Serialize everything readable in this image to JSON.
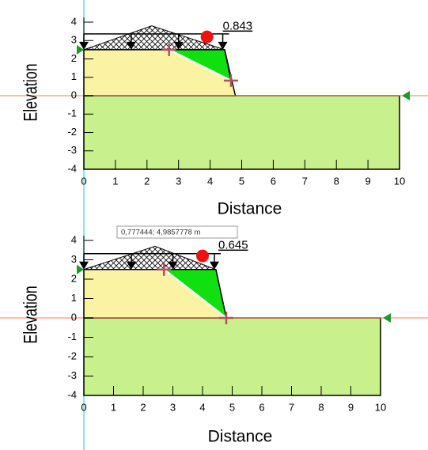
{
  "chart_data": [
    {
      "type": "slope",
      "xlabel": "Distance",
      "ylabel": "Elevation",
      "xlim": [
        0,
        10
      ],
      "ylim": [
        -4,
        4
      ],
      "xticks": [
        0,
        1,
        2,
        3,
        4,
        5,
        6,
        7,
        8,
        9,
        10
      ],
      "yticks": [
        -4,
        -3,
        -2,
        -1,
        0,
        1,
        2,
        3,
        4
      ],
      "ground": {
        "x": [
          0,
          10,
          10,
          0
        ],
        "y": [
          0,
          0,
          -4,
          -4
        ]
      },
      "embankment": {
        "x": [
          0,
          4.46,
          4.8,
          0
        ],
        "y": [
          2.5,
          2.5,
          0,
          0
        ]
      },
      "surcharge": {
        "x": [
          0,
          2.15,
          4.46
        ],
        "y": [
          2.5,
          3.8,
          2.5
        ]
      },
      "sliding_mass": {
        "x": [
          2.7,
          4.46,
          4.66
        ],
        "y": [
          2.5,
          2.5,
          0.82
        ]
      },
      "slip_surface": {
        "x": [
          2.7,
          4.66
        ],
        "y": [
          2.5,
          0.82
        ]
      },
      "loads": [
        0,
        1.5,
        3.0,
        4.4
      ],
      "critical_center": {
        "x": 3.9,
        "y": 3.2
      },
      "fos": 0.843
    },
    {
      "type": "slope",
      "xlabel": "Distance",
      "ylabel": "Elevation",
      "xlim": [
        0,
        10
      ],
      "ylim": [
        -4,
        4
      ],
      "xticks": [
        0,
        1,
        2,
        3,
        4,
        5,
        6,
        7,
        8,
        9,
        10
      ],
      "yticks": [
        -4,
        -3,
        -2,
        -1,
        0,
        1,
        2,
        3,
        4
      ],
      "ground": {
        "x": [
          0,
          10,
          10,
          0
        ],
        "y": [
          0,
          0,
          -4,
          -4
        ]
      },
      "embankment": {
        "x": [
          0,
          4.45,
          4.8,
          0
        ],
        "y": [
          2.5,
          2.5,
          0,
          0
        ]
      },
      "surcharge": {
        "x": [
          0,
          2.4,
          4.45
        ],
        "y": [
          2.5,
          3.7,
          2.5
        ]
      },
      "sliding_mass": {
        "x": [
          2.7,
          4.45,
          4.8
        ],
        "y": [
          2.5,
          2.5,
          0
        ]
      },
      "slip_surface": {
        "x": [
          2.7,
          4.8
        ],
        "y": [
          2.5,
          0
        ]
      },
      "loads": [
        0,
        1.6,
        3.0,
        4.4
      ],
      "critical_center": {
        "x": 4.0,
        "y": 3.2
      },
      "fos": 0.645,
      "tooltip": "0,777444; 4,9857778 m"
    }
  ]
}
